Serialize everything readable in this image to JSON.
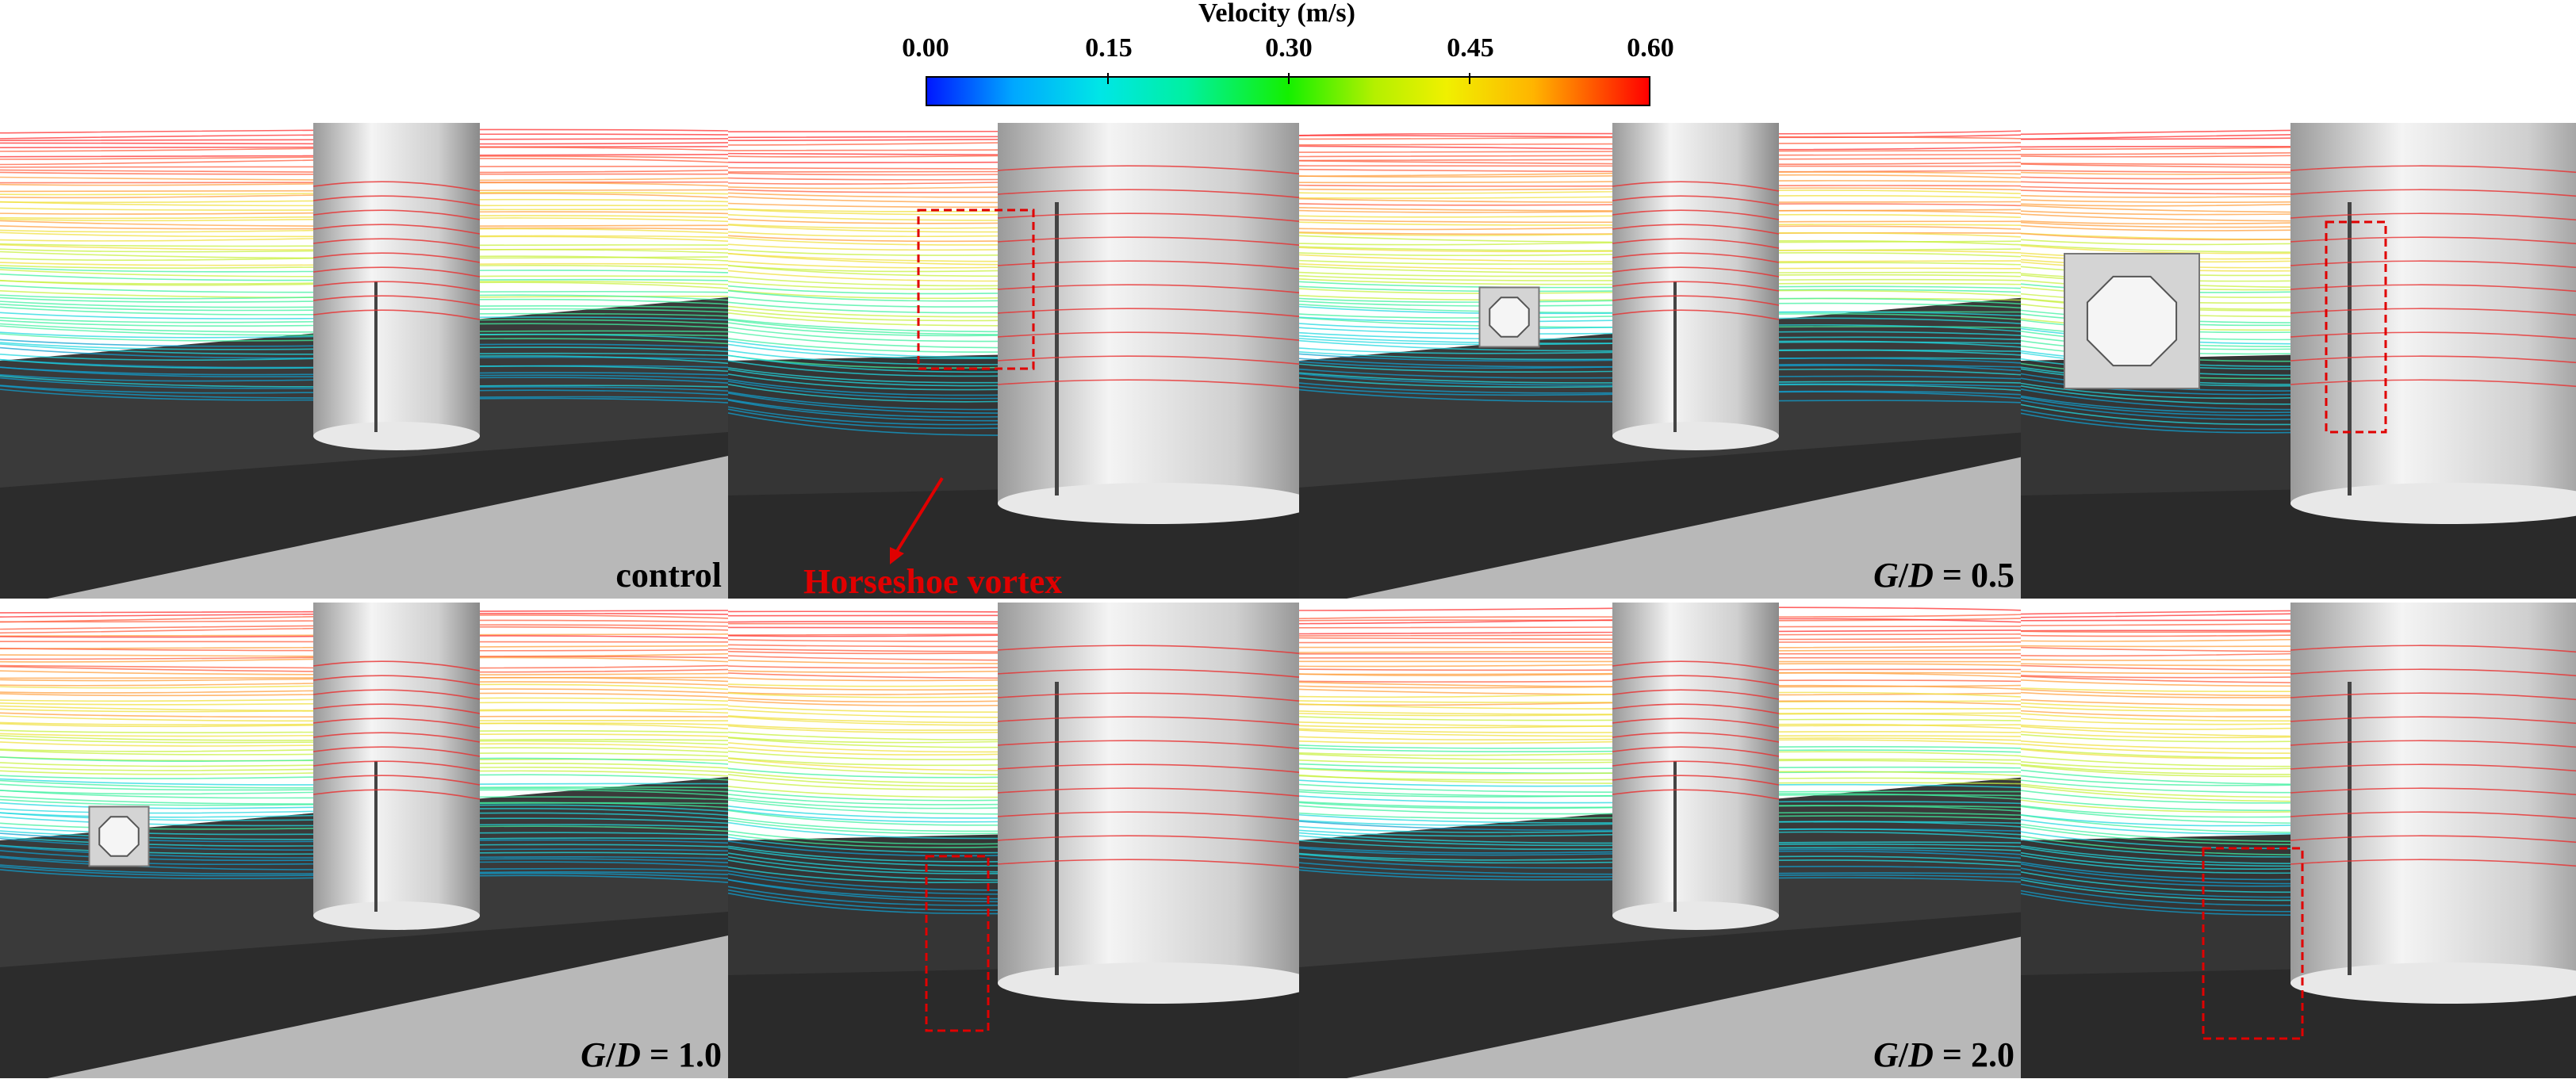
{
  "colorbar": {
    "title": "Velocity (m/s)",
    "ticks": [
      "0.00",
      "0.15",
      "0.30",
      "0.45",
      "0.60"
    ],
    "colors": [
      "#0018ff",
      "#00e6e6",
      "#14f000",
      "#f0f000",
      "#ff0000"
    ]
  },
  "labels": {
    "control": "control",
    "gd_symbol_g": "G",
    "gd_symbol_d": "D",
    "gd_05": " = 0.5",
    "gd_10": " = 1.0",
    "gd_20": " = 2.0",
    "horseshoe": "Horseshoe vortex"
  },
  "colors": {
    "bed": "#3a3a3a",
    "pier": "#d9d9d9",
    "annotation": "#e00000"
  }
}
